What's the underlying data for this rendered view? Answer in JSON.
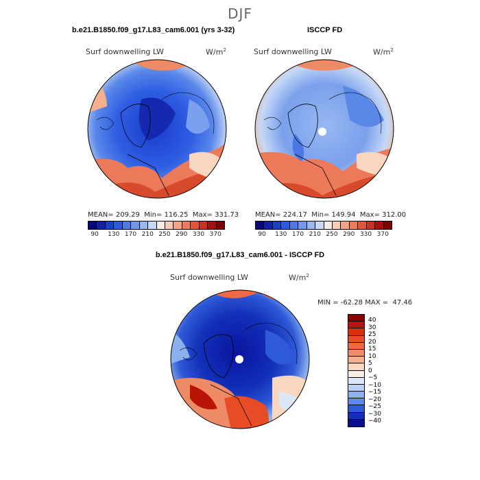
{
  "main_title": "DJF",
  "panels": {
    "model": {
      "title": "b.e21.B1850.f09_g17.L83_cam6.001 (yrs 3-32)",
      "var_label": "Surf downwelling LW",
      "units": "W/m",
      "units_exp": "2",
      "mean_label": "MEAN=",
      "mean": "209.29",
      "min_label": "Min=",
      "min": "116.25",
      "max_label": "Max=",
      "max": "331.73"
    },
    "obs": {
      "title": "ISCCP FD",
      "var_label": "Surf downwelling LW",
      "units": "W/m",
      "units_exp": "2",
      "mean_label": "MEAN=",
      "mean": "224.17",
      "min_label": "Min=",
      "min": "149.94",
      "max_label": "Max=",
      "max": "312.00"
    },
    "diff": {
      "title": "b.e21.B1850.f09_g17.L83_cam6.001 - ISCCP FD",
      "var_label": "Surf downwelling LW",
      "units": "W/m",
      "units_exp": "2",
      "min_label": "MIN =",
      "min": "-62.28",
      "max_label": "MAX =",
      "max": "47.46"
    }
  },
  "abs_colorbar": {
    "tick_labels": [
      "90",
      "130",
      "170",
      "210",
      "250",
      "290",
      "330",
      "370"
    ],
    "colors": [
      "#08087a",
      "#1020a8",
      "#1a40c8",
      "#2a5ae0",
      "#4a7ae8",
      "#7098ec",
      "#9ab8f0",
      "#c6d8f6",
      "#f8ece4",
      "#f8ccb0",
      "#f4a484",
      "#ec7c5c",
      "#e0563a",
      "#cc3020",
      "#a81010",
      "#7a0404"
    ]
  },
  "diff_colorbar": {
    "tick_labels": [
      "40",
      "30",
      "25",
      "20",
      "15",
      "10",
      "5",
      "0",
      "−5",
      "−10",
      "−15",
      "−20",
      "−25",
      "−30",
      "−40"
    ],
    "colors": [
      "#8a0000",
      "#b81408",
      "#d8300c",
      "#e84c24",
      "#ee6a44",
      "#f08c66",
      "#f4b08c",
      "#f8d6c0",
      "#fbeee4",
      "#dce8f8",
      "#b8d0f4",
      "#8cb0ee",
      "#5c88e6",
      "#2e5ad8",
      "#1230b8",
      "#08108a"
    ]
  },
  "map_colors": {
    "land_outline": "#000000",
    "pole_dot": "#ffffff"
  }
}
